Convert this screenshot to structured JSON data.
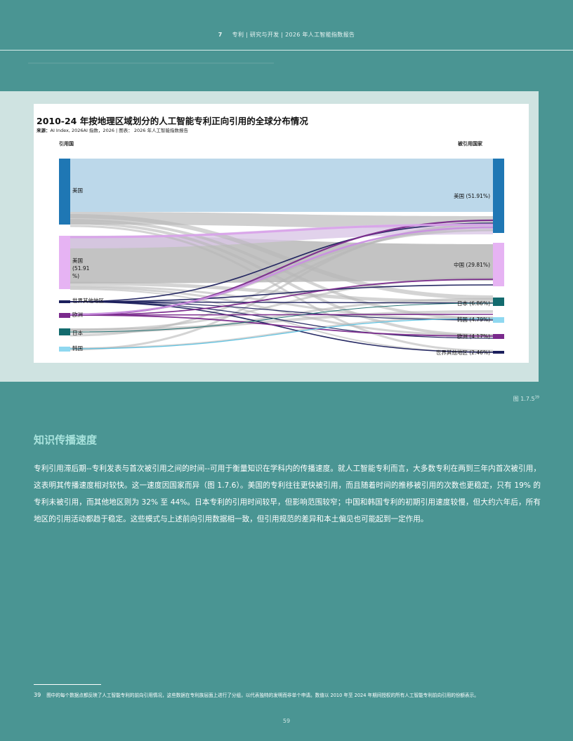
{
  "header": {
    "chapter_number": "7",
    "running_title": "专利 | 研究与开发 | 2026 年人工智能指数报告"
  },
  "figure": {
    "title": "2010-24 年按地理区域划分的人工智能专利正向引用的全球分布情况",
    "source_label": "来源：",
    "source_text": "AI Index, 2026AI 指数，2026 | 图表：  2026 年人工智能指数报告",
    "label": "图 1.7.5",
    "label_sup": "39"
  },
  "chart_data": {
    "type": "sankey",
    "title": "2010-24 年按地理区域划分的人工智能专利正向引用的全球分布情况",
    "left_header": "引用国",
    "right_header": "被引用国家",
    "left_nodes": [
      {
        "label": "美国",
        "color": "#1f77b4"
      },
      {
        "label": "美国\n(51.91\n%)",
        "color": "#e6b3f3"
      },
      {
        "label": "世界其他地区",
        "color": "#1b1f5c"
      },
      {
        "label": "欧洲",
        "color": "#7a2a8c"
      },
      {
        "label": "日本",
        "color": "#136b6e"
      },
      {
        "label": "韩国",
        "color": "#8fd8f0"
      }
    ],
    "right_nodes": [
      {
        "label": "美国 (51.91%)",
        "color": "#1f77b4"
      },
      {
        "label": "中国 (29.81%)",
        "color": "#e6b3f3"
      },
      {
        "label": "日本 (6.86%)",
        "color": "#136b6e"
      },
      {
        "label": "韩国 (4.79%)",
        "color": "#8fd8f0"
      },
      {
        "label": "欧洲 (4.17%)",
        "color": "#7a2a8c"
      },
      {
        "label": "世界其他地区 (2.46%)",
        "color": "#1b1f5c"
      }
    ]
  },
  "section": {
    "title": "知识传播速度",
    "body": "专利引用滞后期--专利发表与首次被引用之间的时间--可用于衡量知识在学科内的传播速度。就人工智能专利而言，大多数专利在两到三年内首次被引用，这表明其传播速度相对较快。这一速度因国家而异（图 1.7.6）。美国的专利往往更快被引用，而且随着时间的推移被引用的次数也更稳定，只有 19% 的专利未被引用，而其他地区则为 32% 至 44%。日本专利的引用时间较早，但影响范围较窄；中国和韩国专利的初期引用速度较慢，但大约六年后，所有地区的引用活动都趋于稳定。这些模式与上述前向引用数据相一致，但引用规范的差异和本土偏见也可能起到一定作用。"
  },
  "footnote": {
    "number": "39",
    "text": "图中的每个数据点都反映了人工智能专利的前向引用情况，这些数据在专利族层面上进行了分组，以代表独特的发明而非单个申请。数值以 2010 年至 2024 年期间授权的所有人工智能专利前向引用的份额表示。"
  },
  "page_number": "59"
}
